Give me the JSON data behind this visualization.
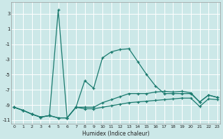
{
  "bg_color": "#cce8e8",
  "line_color": "#1a7a6e",
  "xlabel": "Humidex (Indice chaleur)",
  "xlim": [
    -0.3,
    23.3
  ],
  "ylim": [
    -11.5,
    4.5
  ],
  "yticks": [
    3,
    1,
    -1,
    -3,
    -5,
    -7,
    -9,
    -11
  ],
  "xticks": [
    0,
    1,
    2,
    3,
    4,
    5,
    6,
    7,
    8,
    9,
    10,
    11,
    12,
    13,
    14,
    15,
    16,
    17,
    18,
    19,
    20,
    21,
    22,
    23
  ],
  "series_a": [
    -9.3,
    -9.7,
    -10.2,
    -10.6,
    -10.4,
    3.5,
    -10.7,
    -9.3,
    -5.8,
    -6.8,
    -2.8,
    -2.0,
    -1.7,
    -1.6,
    -3.3,
    -5.0,
    -6.5,
    -7.5,
    -7.5,
    -7.5,
    -7.5,
    -8.6,
    -7.7,
    -8.0
  ],
  "series_b": [
    -9.3,
    -9.7,
    -10.2,
    -10.6,
    -10.4,
    -10.7,
    -10.7,
    -9.3,
    -9.3,
    -9.3,
    -8.7,
    -8.3,
    -7.9,
    -7.5,
    -7.5,
    -7.5,
    -7.3,
    -7.2,
    -7.3,
    -7.2,
    -7.4,
    -8.6,
    -7.7,
    -8.0
  ],
  "series_c": [
    -9.3,
    -9.7,
    -10.2,
    -10.6,
    -10.4,
    -10.7,
    -10.7,
    -9.3,
    -9.5,
    -9.5,
    -9.3,
    -9.1,
    -8.9,
    -8.7,
    -8.6,
    -8.5,
    -8.4,
    -8.3,
    -8.2,
    -8.1,
    -8.1,
    -9.2,
    -8.2,
    -8.3
  ]
}
